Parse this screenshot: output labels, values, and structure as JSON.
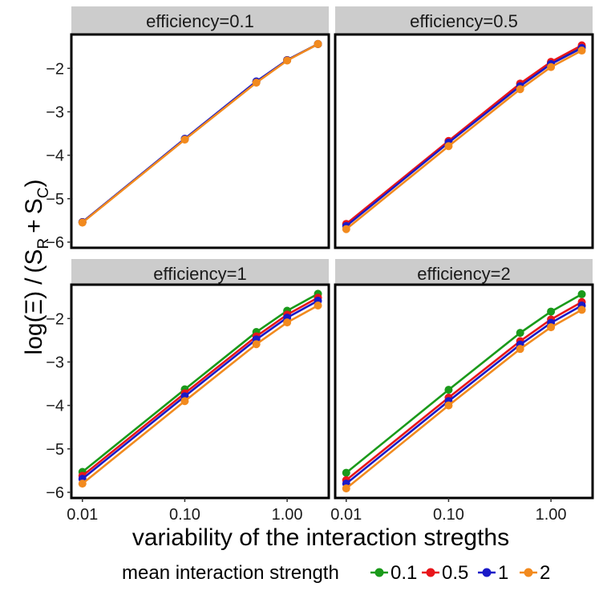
{
  "chart_data": {
    "type": "line",
    "facet_label": "efficiency",
    "xlabel": "variability of the interaction stregths",
    "ylabel": "log(Ξ) / (S_R + S_C)",
    "ylabel_parts": {
      "log": "log",
      "xi": "Ξ",
      "s": "S",
      "sub_r": "R",
      "sub_c": "C",
      "plus": "+",
      "slash": "/"
    },
    "x_scale": "log10",
    "x": [
      0.01,
      0.1,
      0.5,
      1.0,
      2.0
    ],
    "x_ticks": [
      0.01,
      0.1,
      1.0
    ],
    "x_tick_labels": [
      "0.01",
      "0.10",
      "1.00"
    ],
    "xlim": [
      0.0078,
      2.55
    ],
    "y_ticks": [
      -6,
      -5,
      -4,
      -3,
      -2
    ],
    "y_tick_labels": [
      "−6",
      "−5",
      "−4",
      "−3",
      "−2"
    ],
    "ylim": [
      -6.13,
      -1.22
    ],
    "legend": {
      "title": "mean interaction strength",
      "position": "bottom"
    },
    "series_meta": [
      {
        "name": "0.1",
        "color": "#1a9a1a"
      },
      {
        "name": "0.5",
        "color": "#e8161b"
      },
      {
        "name": "1",
        "color": "#1a1ac8"
      },
      {
        "name": "2",
        "color": "#f28a1e"
      }
    ],
    "panels": [
      {
        "efficiency": "0.1",
        "strip_label": "efficiency=0.1",
        "series": [
          {
            "name": "0.1",
            "values": [
              -5.54,
              -3.63,
              -2.31,
              -1.81,
              -1.44
            ]
          },
          {
            "name": "0.5",
            "values": [
              -5.54,
              -3.63,
              -2.31,
              -1.81,
              -1.44
            ]
          },
          {
            "name": "1",
            "values": [
              -5.54,
              -3.62,
              -2.3,
              -1.81,
              -1.44
            ]
          },
          {
            "name": "2",
            "values": [
              -5.55,
              -3.64,
              -2.33,
              -1.82,
              -1.44
            ]
          }
        ]
      },
      {
        "efficiency": "0.5",
        "strip_label": "efficiency=0.5",
        "series": [
          {
            "name": "0.1",
            "values": [
              -5.59,
              -3.68,
              -2.36,
              -1.86,
              -1.49
            ]
          },
          {
            "name": "0.5",
            "values": [
              -5.58,
              -3.67,
              -2.35,
              -1.85,
              -1.47
            ]
          },
          {
            "name": "1",
            "values": [
              -5.63,
              -3.71,
              -2.41,
              -1.9,
              -1.53
            ]
          },
          {
            "name": "2",
            "values": [
              -5.7,
              -3.79,
              -2.48,
              -1.97,
              -1.59
            ]
          }
        ]
      },
      {
        "efficiency": "1",
        "strip_label": "efficiency=1",
        "series": [
          {
            "name": "0.1",
            "values": [
              -5.53,
              -3.63,
              -2.31,
              -1.82,
              -1.43
            ]
          },
          {
            "name": "0.5",
            "values": [
              -5.62,
              -3.72,
              -2.41,
              -1.91,
              -1.52
            ]
          },
          {
            "name": "1",
            "values": [
              -5.69,
              -3.79,
              -2.48,
              -1.98,
              -1.59
            ]
          },
          {
            "name": "2",
            "values": [
              -5.8,
              -3.9,
              -2.59,
              -2.09,
              -1.7
            ]
          }
        ]
      },
      {
        "efficiency": "2",
        "strip_label": "efficiency=2",
        "series": [
          {
            "name": "0.1",
            "values": [
              -5.55,
              -3.64,
              -2.33,
              -1.84,
              -1.44
            ]
          },
          {
            "name": "0.5",
            "values": [
              -5.72,
              -3.82,
              -2.52,
              -2.02,
              -1.62
            ]
          },
          {
            "name": "1",
            "values": [
              -5.8,
              -3.9,
              -2.6,
              -2.1,
              -1.7
            ]
          },
          {
            "name": "2",
            "values": [
              -5.91,
              -4.0,
              -2.7,
              -2.2,
              -1.8
            ]
          }
        ]
      }
    ]
  }
}
